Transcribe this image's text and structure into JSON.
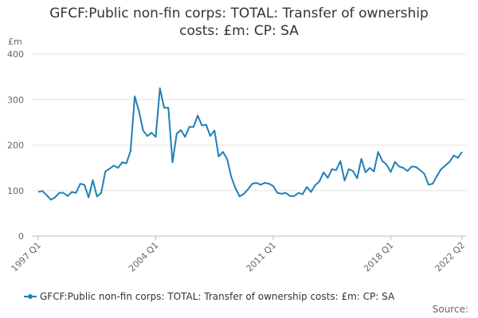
{
  "chart_data": {
    "type": "line",
    "title": "GFCF:Public non-fin corps: TOTAL: Transfer of ownership costs: £m: CP: SA",
    "y_unit": "£m",
    "source": "Source:",
    "categories": [
      "1997 Q1",
      null,
      null,
      null,
      null,
      null,
      null,
      null,
      null,
      null,
      null,
      null,
      null,
      null,
      null,
      null,
      null,
      null,
      null,
      null,
      null,
      null,
      null,
      null,
      null,
      null,
      null,
      null,
      "2004 Q1",
      null,
      null,
      null,
      null,
      null,
      null,
      null,
      null,
      null,
      null,
      null,
      null,
      null,
      null,
      null,
      null,
      null,
      null,
      null,
      null,
      null,
      null,
      null,
      null,
      null,
      null,
      null,
      "2011 Q1",
      null,
      null,
      null,
      null,
      null,
      null,
      null,
      null,
      null,
      null,
      null,
      null,
      null,
      null,
      null,
      null,
      null,
      null,
      null,
      null,
      null,
      null,
      null,
      null,
      null,
      null,
      null,
      "2018 Q1",
      null,
      null,
      null,
      null,
      null,
      null,
      null,
      null,
      null,
      null,
      null,
      null,
      null,
      null,
      null,
      null,
      "2022 Q2"
    ],
    "series": [
      {
        "name": "GFCF:Public non-fin corps: TOTAL: Transfer of ownership costs: £m: CP: SA",
        "color": "#1f7fb6",
        "values": [
          97,
          99,
          90,
          80,
          85,
          95,
          95,
          88,
          97,
          95,
          115,
          113,
          85,
          123,
          87,
          95,
          142,
          148,
          155,
          150,
          162,
          160,
          187,
          307,
          275,
          232,
          220,
          227,
          218,
          325,
          282,
          282,
          162,
          225,
          233,
          218,
          240,
          240,
          265,
          243,
          245,
          220,
          232,
          175,
          185,
          170,
          130,
          105,
          87,
          93,
          103,
          115,
          117,
          113,
          117,
          115,
          110,
          95,
          93,
          95,
          88,
          88,
          95,
          92,
          108,
          97,
          112,
          120,
          140,
          128,
          147,
          145,
          165,
          122,
          147,
          143,
          127,
          170,
          140,
          150,
          142,
          185,
          165,
          157,
          141,
          163,
          153,
          150,
          143,
          153,
          152,
          145,
          137,
          113,
          115,
          132,
          147,
          155,
          163,
          177,
          172,
          185
        ]
      }
    ],
    "ylim": [
      0,
      400
    ],
    "yticks": [
      0,
      100,
      200,
      300,
      400
    ],
    "grid": true,
    "legend": "bottom"
  }
}
